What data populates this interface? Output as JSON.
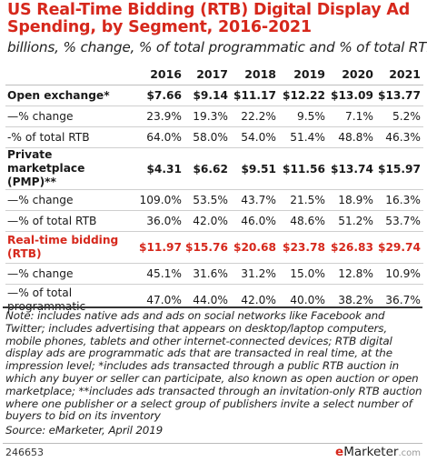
{
  "chart_data": {
    "type": "table",
    "title": "US Real-Time Bidding (RTB) Digital Display Ad Spending, by Segment, 2016-2021",
    "subtitle": "billions, % change, % of total programmatic and % of total RTB",
    "columns": [
      "2016",
      "2017",
      "2018",
      "2019",
      "2020",
      "2021"
    ],
    "rows": [
      {
        "label": "Open exchange*",
        "style": "bold",
        "values": [
          "$7.66",
          "$9.14",
          "$11.17",
          "$12.22",
          "$13.09",
          "$13.77"
        ]
      },
      {
        "label": "—% change",
        "style": "plain",
        "values": [
          "23.9%",
          "19.3%",
          "22.2%",
          "9.5%",
          "7.1%",
          "5.2%"
        ]
      },
      {
        "label": "-% of total RTB",
        "style": "plain",
        "values": [
          "64.0%",
          "58.0%",
          "54.0%",
          "51.4%",
          "48.8%",
          "46.3%"
        ]
      },
      {
        "label": "Private marketplace (PMP)**",
        "style": "bold",
        "values": [
          "$4.31",
          "$6.62",
          "$9.51",
          "$11.56",
          "$13.74",
          "$15.97"
        ]
      },
      {
        "label": "—% change",
        "style": "plain",
        "values": [
          "109.0%",
          "53.5%",
          "43.7%",
          "21.5%",
          "18.9%",
          "16.3%"
        ]
      },
      {
        "label": "—% of total RTB",
        "style": "plain",
        "values": [
          "36.0%",
          "42.0%",
          "46.0%",
          "48.6%",
          "51.2%",
          "53.7%"
        ]
      },
      {
        "label": "Real-time bidding (RTB)",
        "style": "red",
        "values": [
          "$11.97",
          "$15.76",
          "$20.68",
          "$23.78",
          "$26.83",
          "$29.74"
        ]
      },
      {
        "label": "—% change",
        "style": "plain",
        "values": [
          "45.1%",
          "31.6%",
          "31.2%",
          "15.0%",
          "12.8%",
          "10.9%"
        ]
      },
      {
        "label": "—% of total programmatic",
        "style": "plain",
        "values": [
          "47.0%",
          "44.0%",
          "42.0%",
          "40.0%",
          "38.2%",
          "36.7%"
        ]
      }
    ]
  },
  "note": "Note: includes native ads and ads on social networks like Facebook and Twitter; includes advertising that appears on desktop/laptop computers, mobile phones, tablets and other internet-connected devices; RTB digital display ads are programmatic ads that are transacted in real time, at the impression level; *includes ads transacted through a public RTB auction in which any buyer or seller can participate, also known as open auction or open marketplace; **includes ads transacted through an invitation-only RTB auction where one publisher or a select group of publishers invite a select number of buyers to bid on its inventory",
  "source": "Source: eMarketer, April 2019",
  "chart_id": "246653",
  "brand": {
    "prefix": "e",
    "name": "Marketer",
    "suffix": ".com"
  },
  "colors": {
    "accent": "#d6281c",
    "text": "#1a1a1a",
    "rule": "#cfcfcf"
  }
}
